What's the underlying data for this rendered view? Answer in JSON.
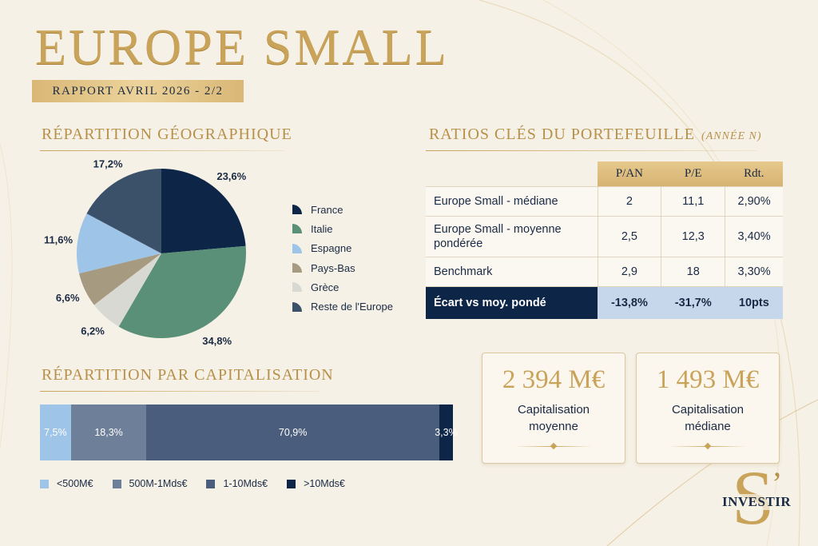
{
  "header": {
    "title": "EUROPE SMALL",
    "subtitle": "RAPPORT AVRIL 2026 - 2/2"
  },
  "sections": {
    "geo_title": "RÉPARTITION GÉOGRAPHIQUE",
    "ratios_title": "RATIOS CLÉS DU PORTEFEUILLE",
    "ratios_paren": "(ANNÉE N)",
    "cap_title": "RÉPARTITION PAR CAPITALISATION"
  },
  "chart_data": [
    {
      "type": "pie",
      "title": "RÉPARTITION GÉOGRAPHIQUE",
      "categories": [
        "France",
        "Italie",
        "Espagne",
        "Pays-Bas",
        "Grèce",
        "Reste de l'Europe"
      ],
      "values": [
        23.6,
        34.8,
        11.6,
        6.6,
        6.2,
        17.2
      ],
      "value_labels": [
        "23,6%",
        "34,8%",
        "11,6%",
        "6,6%",
        "6,2%",
        "17,2%"
      ],
      "slice_order": [
        0,
        1,
        4,
        3,
        2,
        5
      ],
      "colors": [
        "#0d2547",
        "#5a8f78",
        "#9ec4e8",
        "#a69a80",
        "#d9d9d4",
        "#3b5069"
      ],
      "legend": "right"
    },
    {
      "type": "bar",
      "orientation": "horizontal-stacked",
      "title": "RÉPARTITION PAR CAPITALISATION",
      "categories": [
        "<500M€",
        "500M-1Mds€",
        "1-10Mds€",
        ">10Mds€"
      ],
      "values": [
        7.5,
        18.3,
        70.9,
        3.3
      ],
      "value_labels": [
        "7,5%",
        "18,3%",
        "70,9%",
        "3,3%"
      ],
      "colors": [
        "#9ec4e8",
        "#6e7f99",
        "#4a5d7c",
        "#0d2547"
      ],
      "legend": "bottom"
    },
    {
      "type": "table",
      "title": "RATIOS CLÉS DU PORTEFEUILLE",
      "columns": [
        "P/AN",
        "P/E",
        "Rdt."
      ],
      "rows": [
        {
          "label": "Europe Small - médiane",
          "values": [
            "2",
            "11,1",
            "2,90%"
          ]
        },
        {
          "label": "Europe Small - moyenne pondérée",
          "values": [
            "2,5",
            "12,3",
            "3,40%"
          ]
        },
        {
          "label": "Benchmark",
          "values": [
            "2,9",
            "18",
            "3,30%"
          ]
        },
        {
          "label": "Écart vs moy. pondé",
          "values": [
            "-13,8%",
            "-31,7%",
            "10pts"
          ]
        }
      ]
    }
  ],
  "kpis": [
    {
      "value": "2 394 M€",
      "label": "Capitalisation moyenne"
    },
    {
      "value": "1 493 M€",
      "label": "Capitalisation médiane"
    }
  ],
  "logo": {
    "letter": "S",
    "quote": "’",
    "word": "INVESTIR"
  }
}
